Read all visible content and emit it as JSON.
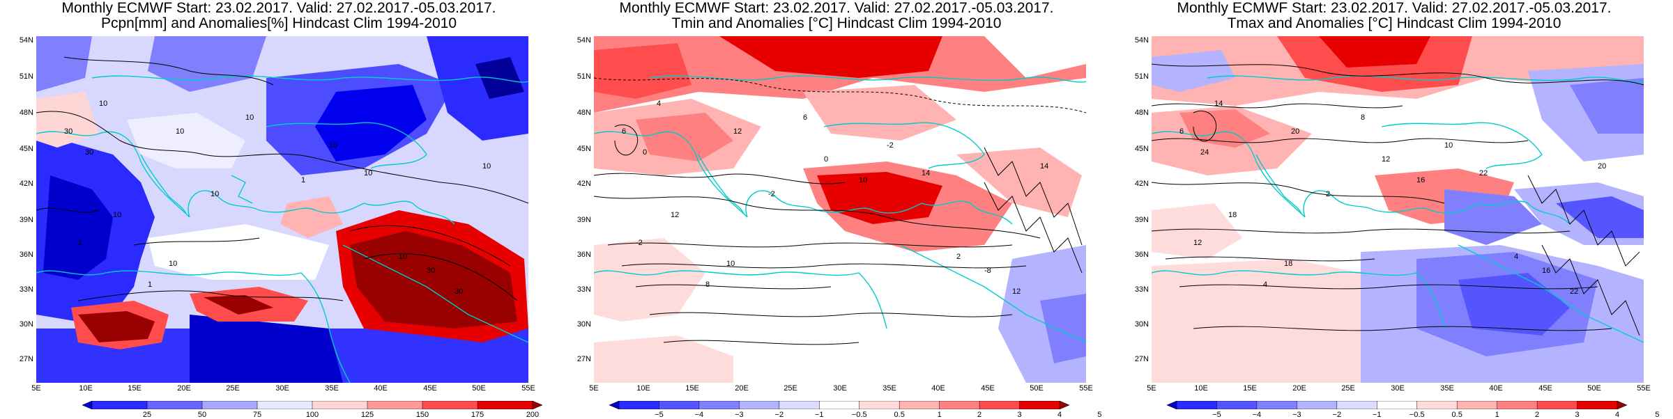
{
  "panels": [
    {
      "title_line1": "Monthly ECMWF Start: 23.02.2017. Valid: 27.02.2017.-05.03.2017.",
      "title_line2": "Pcpn[mm] and Anomalies[%] Hindcast Clim 1994-2010",
      "colorbar": {
        "ticks": [
          "25",
          "50",
          "75",
          "100",
          "125",
          "150",
          "175",
          "200"
        ],
        "colors": [
          "#0000cc",
          "#2b2bff",
          "#6666ff",
          "#a8a8ff",
          "#e8e8ff",
          "#ffd6d6",
          "#ff9999",
          "#ff4d4d",
          "#e60000",
          "#990000"
        ]
      },
      "contour_labels": [
        "10",
        "30",
        "10",
        "10",
        "10",
        "30",
        "10",
        "10",
        "1",
        "1",
        "10",
        "30",
        "10",
        "30",
        "10",
        "10",
        "1"
      ]
    },
    {
      "title_line1": "Monthly ECMWF Start: 23.02.2017. Valid: 27.02.2017.-05.03.2017.",
      "title_line2": "Tmin and Anomalies [°C] Hindcast Clim 1994-2010",
      "colorbar": {
        "ticks": [
          "−5",
          "−4",
          "−3",
          "−2",
          "−1",
          "−0.5",
          "0.5",
          "1",
          "2",
          "3",
          "4",
          "5"
        ],
        "colors": [
          "#0000cc",
          "#2b2bff",
          "#5555ff",
          "#8080ff",
          "#b3b3ff",
          "#dcdcff",
          "#ffffff",
          "#ffdcdc",
          "#ffb3b3",
          "#ff8080",
          "#ff4d4d",
          "#e60000",
          "#990000"
        ]
      },
      "contour_labels": [
        "-2",
        "-2",
        "0",
        "4",
        "-8",
        "12",
        "14",
        "12",
        "12",
        "14",
        "10",
        "10",
        "8",
        "-2",
        "0",
        "2",
        "6",
        "6"
      ]
    },
    {
      "title_line1": "Monthly ECMWF Start: 23.02.2017. Valid: 27.02.2017.-05.03.2017.",
      "title_line2": "Tmax and Anomalies [°C] Hindcast Clim 1994-2010",
      "colorbar": {
        "ticks": [
          "−5",
          "−4",
          "−3",
          "−2",
          "−1",
          "−0.5",
          "0.5",
          "1",
          "2",
          "3",
          "4",
          "5"
        ],
        "colors": [
          "#0000cc",
          "#2b2bff",
          "#5555ff",
          "#8080ff",
          "#b3b3ff",
          "#dcdcff",
          "#ffffff",
          "#ffdcdc",
          "#ffb3b3",
          "#ff8080",
          "#ff4d4d",
          "#e60000",
          "#990000"
        ]
      },
      "contour_labels": [
        "4",
        "6",
        "8",
        "10",
        "12",
        "12",
        "14",
        "16",
        "18",
        "20",
        "20",
        "22",
        "22",
        "18",
        "16",
        "4",
        "2",
        "24"
      ]
    }
  ],
  "lat_ticks": [
    "54N",
    "51N",
    "48N",
    "45N",
    "42N",
    "39N",
    "36N",
    "33N",
    "30N",
    "27N"
  ],
  "lon_ticks": [
    "5E",
    "10E",
    "15E",
    "20E",
    "25E",
    "30E",
    "35E",
    "40E",
    "45E",
    "50E",
    "55E"
  ],
  "colors": {
    "coast": "#00cccc",
    "contour": "#000000",
    "background": "#ffffff"
  }
}
